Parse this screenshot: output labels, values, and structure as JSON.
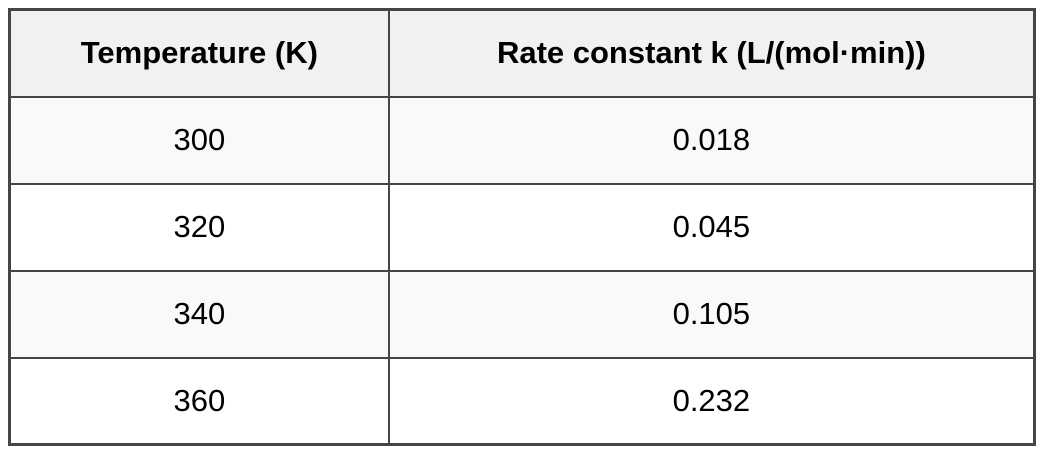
{
  "table": {
    "columns": [
      "Temperature (K)",
      "Rate constant k (L/(mol·min))"
    ],
    "rows": [
      [
        "300",
        "0.018"
      ],
      [
        "320",
        "0.045"
      ],
      [
        "340",
        "0.105"
      ],
      [
        "360",
        "0.232"
      ]
    ]
  },
  "chart_data": {
    "type": "table",
    "title": "",
    "columns": [
      "Temperature (K)",
      "Rate constant k (L/(mol·min))"
    ],
    "rows": [
      [
        300,
        0.018
      ],
      [
        320,
        0.045
      ],
      [
        340,
        0.105
      ],
      [
        360,
        0.232
      ]
    ],
    "x_series_name": "Temperature (K)",
    "x": [
      300,
      320,
      340,
      360
    ],
    "series": [
      {
        "name": "Rate constant k (L/(mol·min))",
        "values": [
          0.018,
          0.045,
          0.105,
          0.232
        ]
      }
    ]
  },
  "colors": {
    "border": "#454545",
    "header_bg": "#f1f1f1",
    "row_alt_bg": "#f9f9f9",
    "row_bg": "#ffffff",
    "text": "#000000"
  }
}
